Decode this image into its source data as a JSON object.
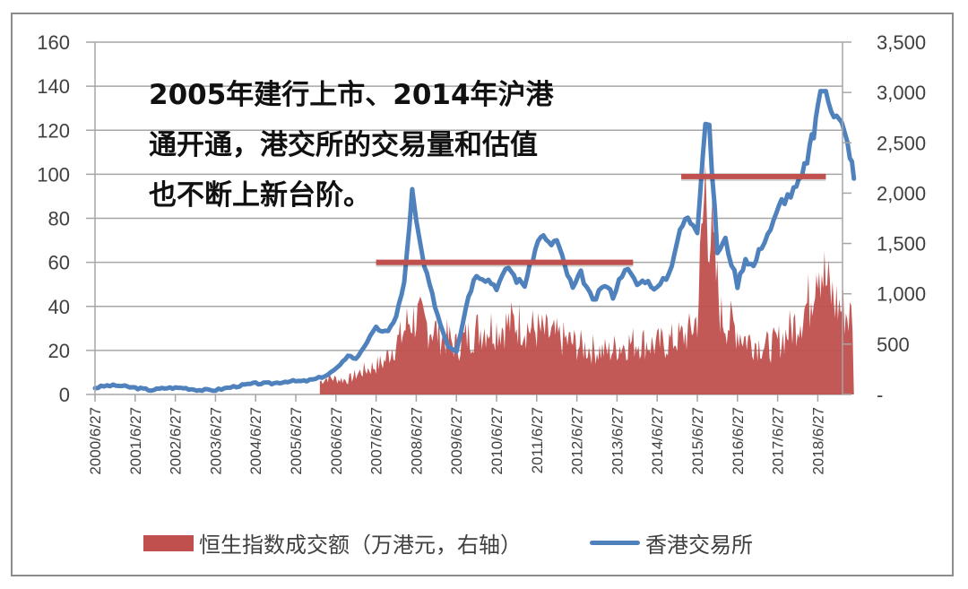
{
  "chart_data": {
    "type": "line+area",
    "title": "",
    "annotation": [
      "2005年建行上市、2014年沪港",
      "通开通，港交所的交易量和估值",
      "也不断上新台阶。"
    ],
    "x_tick_labels": [
      "2000/6/27",
      "2001/6/27",
      "2002/6/27",
      "2003/6/27",
      "2004/6/27",
      "2005/6/27",
      "2006/6/27",
      "2007/6/27",
      "2008/6/27",
      "2009/6/27",
      "2010/6/27",
      "2011/6/27",
      "2012/6/27",
      "2013/6/27",
      "2014/6/27",
      "2015/6/27",
      "2016/6/27",
      "2017/6/27",
      "2018/6/27"
    ],
    "y_left": {
      "min": 0,
      "max": 160,
      "ticks": [
        "0",
        "20",
        "40",
        "60",
        "80",
        "100",
        "120",
        "140",
        "160"
      ]
    },
    "y_right": {
      "min": 0,
      "max": 3500,
      "ticks": [
        "-",
        "500",
        "1,000",
        "1,500",
        "2,000",
        "2,500",
        "3,000",
        "3,500"
      ]
    },
    "grid": true,
    "legend_position": "bottom",
    "series": [
      {
        "name": "香港交易所",
        "axis": "left",
        "type": "line",
        "color": "#4f81bd",
        "x_year": [
          2000.0,
          2000.3,
          2000.6,
          2001.0,
          2001.4,
          2001.8,
          2002.2,
          2002.6,
          2003.0,
          2003.3,
          2003.6,
          2004.0,
          2004.4,
          2004.8,
          2005.2,
          2005.5,
          2005.8,
          2006.1,
          2006.3,
          2006.5,
          2006.7,
          2007.0,
          2007.3,
          2007.5,
          2007.7,
          2007.9,
          2008.0,
          2008.2,
          2008.4,
          2008.6,
          2008.8,
          2009.0,
          2009.1,
          2009.3,
          2009.5,
          2009.8,
          2010.0,
          2010.3,
          2010.5,
          2010.7,
          2010.9,
          2011.1,
          2011.3,
          2011.5,
          2011.7,
          2011.9,
          2012.1,
          2012.4,
          2012.7,
          2012.9,
          2013.2,
          2013.5,
          2013.7,
          2014.0,
          2014.3,
          2014.5,
          2014.7,
          2014.9,
          2015.0,
          2015.2,
          2015.3,
          2015.5,
          2015.7,
          2016.0,
          2016.2,
          2016.4,
          2016.6,
          2016.9,
          2017.1,
          2017.4,
          2017.6,
          2017.8,
          2017.9,
          2018.0,
          2018.2,
          2018.4,
          2018.6,
          2018.8,
          2018.9
        ],
        "values": [
          3,
          4,
          4,
          3,
          2,
          3,
          3,
          2,
          2,
          3,
          4,
          5,
          5,
          6,
          6,
          7,
          9,
          13,
          18,
          16,
          22,
          30,
          28,
          36,
          50,
          92,
          78,
          58,
          45,
          32,
          22,
          20,
          28,
          45,
          55,
          52,
          49,
          58,
          52,
          50,
          62,
          73,
          68,
          70,
          58,
          48,
          55,
          42,
          50,
          45,
          58,
          50,
          52,
          48,
          55,
          70,
          80,
          78,
          76,
          125,
          120,
          65,
          70,
          50,
          62,
          58,
          68,
          78,
          88,
          92,
          98,
          112,
          118,
          133,
          140,
          128,
          122,
          110,
          98
        ],
        "note": "approximate daily HKEX share price (HKD), sampled"
      },
      {
        "name": "恒生指数成交额（万港元，右轴）",
        "axis": "right",
        "type": "area",
        "color": "#c0504d",
        "x_year": [
          2005.6,
          2005.8,
          2006.0,
          2006.3,
          2006.6,
          2006.9,
          2007.2,
          2007.4,
          2007.6,
          2007.8,
          2008.0,
          2008.2,
          2008.4,
          2008.6,
          2008.8,
          2009.0,
          2009.2,
          2009.5,
          2009.8,
          2010.0,
          2010.3,
          2010.5,
          2010.8,
          2011.0,
          2011.3,
          2011.6,
          2011.9,
          2012.2,
          2012.5,
          2012.8,
          2013.0,
          2013.3,
          2013.6,
          2013.9,
          2014.2,
          2014.5,
          2014.8,
          2015.0,
          2015.2,
          2015.4,
          2015.6,
          2015.9,
          2016.2,
          2016.5,
          2016.8,
          2017.1,
          2017.4,
          2017.6,
          2017.8,
          2018.0,
          2018.2,
          2018.4,
          2018.6,
          2018.8,
          2018.9
        ],
        "values": [
          150,
          200,
          180,
          170,
          260,
          320,
          380,
          550,
          650,
          850,
          900,
          820,
          780,
          700,
          650,
          560,
          650,
          750,
          800,
          780,
          820,
          850,
          780,
          750,
          700,
          650,
          600,
          550,
          520,
          500,
          560,
          600,
          620,
          580,
          600,
          650,
          720,
          900,
          2500,
          1600,
          900,
          800,
          650,
          600,
          550,
          650,
          800,
          950,
          1100,
          1700,
          1300,
          1100,
          1000,
          900,
          950
        ],
        "note": "approximate turnover, right axis"
      }
    ],
    "reference_lines": [
      {
        "axis": "left",
        "value": 60,
        "x_start": 2007.0,
        "x_end": 2013.4,
        "color": "#c0504d"
      },
      {
        "axis": "left",
        "value": 99,
        "x_start": 2014.6,
        "x_end": 2018.2,
        "color": "#c0504d"
      }
    ]
  },
  "legend": {
    "area_label": "恒生指数成交额（万港元，右轴）",
    "line_label": "香港交易所"
  }
}
